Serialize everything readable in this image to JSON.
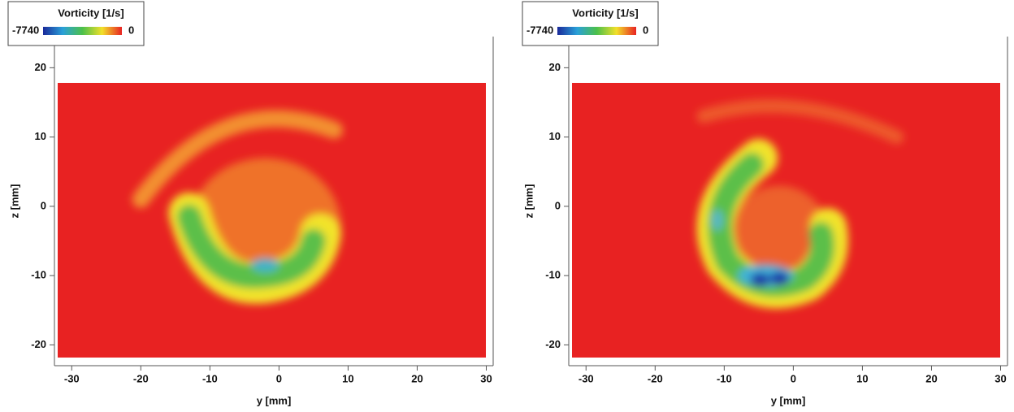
{
  "chart_data": [
    {
      "type": "contour",
      "xlabel": "y [mm]",
      "ylabel": "z [mm]",
      "colorbar": {
        "title": "Vorticity [1/s]",
        "min": -7740,
        "max": 0
      },
      "xlim": [
        -32.5,
        31
      ],
      "ylim": [
        -23,
        24.5
      ],
      "xticks": [
        -30,
        -20,
        -10,
        0,
        10,
        20,
        30
      ],
      "yticks": [
        -20,
        -10,
        0,
        10,
        20
      ]
    },
    {
      "type": "contour",
      "xlabel": "y [mm]",
      "ylabel": "z [mm]",
      "colorbar": {
        "title": "Vorticity [1/s]",
        "min": -7740,
        "max": 0
      },
      "xlim": [
        -32.5,
        31
      ],
      "ylim": [
        -23,
        24.5
      ],
      "xticks": [
        -30,
        -20,
        -10,
        0,
        10,
        20,
        30
      ],
      "yticks": [
        -20,
        -10,
        0,
        10,
        20
      ]
    }
  ]
}
